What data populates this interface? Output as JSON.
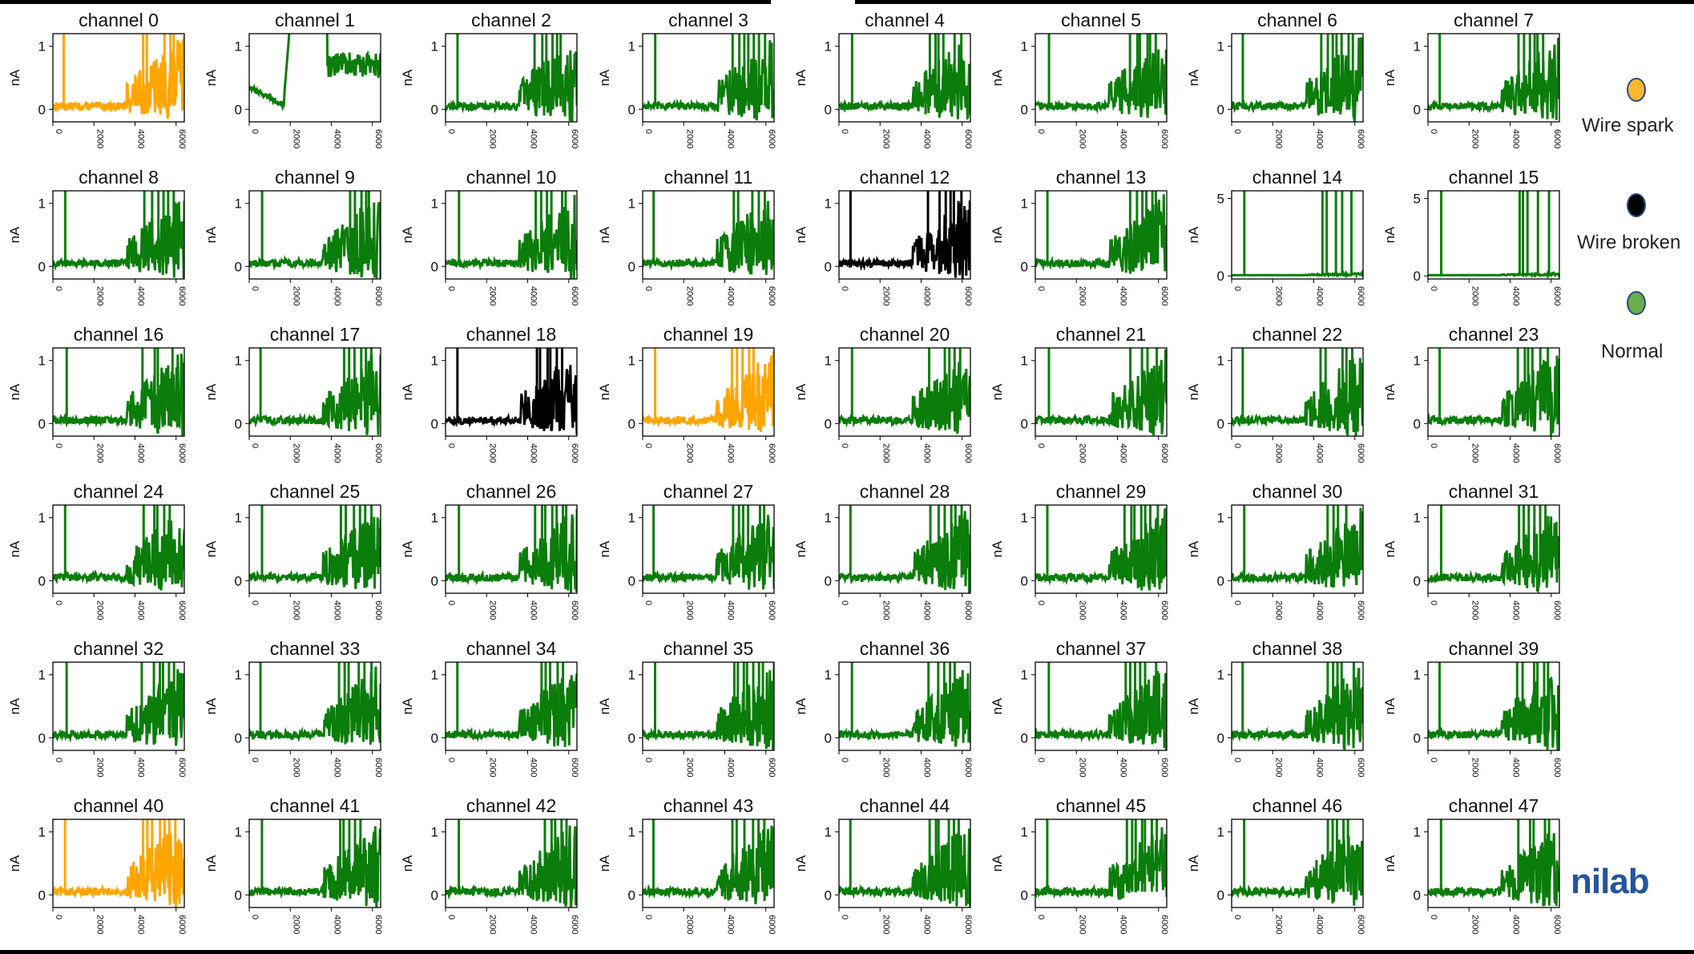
{
  "chart_data": {
    "type": "line",
    "layout": "small-multiples-6x8",
    "ylabel": "nA",
    "x_ticks": [
      "0",
      "2000",
      "4000",
      "6000"
    ],
    "x_range": [
      0,
      6400
    ],
    "default_y_ticks": [
      "0",
      "1"
    ],
    "default_ylim": [
      -0.2,
      1.2
    ],
    "channels": [
      {
        "title": "channel 0",
        "status": "spark"
      },
      {
        "title": "channel 1",
        "status": "normal",
        "special": "channel1"
      },
      {
        "title": "channel 2",
        "status": "normal"
      },
      {
        "title": "channel 3",
        "status": "normal"
      },
      {
        "title": "channel 4",
        "status": "normal"
      },
      {
        "title": "channel 5",
        "status": "normal"
      },
      {
        "title": "channel 6",
        "status": "normal"
      },
      {
        "title": "channel 7",
        "status": "normal"
      },
      {
        "title": "channel 8",
        "status": "normal"
      },
      {
        "title": "channel 9",
        "status": "normal"
      },
      {
        "title": "channel 10",
        "status": "normal"
      },
      {
        "title": "channel 11",
        "status": "normal"
      },
      {
        "title": "channel 12",
        "status": "broken"
      },
      {
        "title": "channel 13",
        "status": "normal"
      },
      {
        "title": "channel 14",
        "status": "normal",
        "y_ticks": [
          "0",
          "5"
        ],
        "ylim": [
          -0.2,
          5.5
        ]
      },
      {
        "title": "channel 15",
        "status": "normal",
        "y_ticks": [
          "0",
          "5"
        ],
        "ylim": [
          -0.2,
          5.5
        ]
      },
      {
        "title": "channel 16",
        "status": "normal"
      },
      {
        "title": "channel 17",
        "status": "normal"
      },
      {
        "title": "channel 18",
        "status": "broken"
      },
      {
        "title": "channel 19",
        "status": "spark"
      },
      {
        "title": "channel 20",
        "status": "normal"
      },
      {
        "title": "channel 21",
        "status": "normal"
      },
      {
        "title": "channel 22",
        "status": "normal"
      },
      {
        "title": "channel 23",
        "status": "normal"
      },
      {
        "title": "channel 24",
        "status": "normal"
      },
      {
        "title": "channel 25",
        "status": "normal"
      },
      {
        "title": "channel 26",
        "status": "normal"
      },
      {
        "title": "channel 27",
        "status": "normal"
      },
      {
        "title": "channel 28",
        "status": "normal"
      },
      {
        "title": "channel 29",
        "status": "normal"
      },
      {
        "title": "channel 30",
        "status": "normal"
      },
      {
        "title": "channel 31",
        "status": "normal"
      },
      {
        "title": "channel 32",
        "status": "normal"
      },
      {
        "title": "channel 33",
        "status": "normal"
      },
      {
        "title": "channel 34",
        "status": "normal"
      },
      {
        "title": "channel 35",
        "status": "normal"
      },
      {
        "title": "channel 36",
        "status": "normal"
      },
      {
        "title": "channel 37",
        "status": "normal"
      },
      {
        "title": "channel 38",
        "status": "normal"
      },
      {
        "title": "channel 39",
        "status": "normal"
      },
      {
        "title": "channel 40",
        "status": "spark"
      },
      {
        "title": "channel 41",
        "status": "normal"
      },
      {
        "title": "channel 42",
        "status": "normal"
      },
      {
        "title": "channel 43",
        "status": "normal"
      },
      {
        "title": "channel 44",
        "status": "normal"
      },
      {
        "title": "channel 45",
        "status": "normal"
      },
      {
        "title": "channel 46",
        "status": "normal"
      },
      {
        "title": "channel 47",
        "status": "normal"
      }
    ],
    "status_colors": {
      "normal": "#0a7d0a",
      "spark": "#ffa500",
      "broken": "#000000"
    },
    "legend": [
      {
        "label": "Wire spark",
        "color": "#f5b82e"
      },
      {
        "label": "Wire broken",
        "color": "#000000"
      },
      {
        "label": "Normal",
        "color": "#6aad4a"
      }
    ]
  },
  "logo_text": "nilab"
}
